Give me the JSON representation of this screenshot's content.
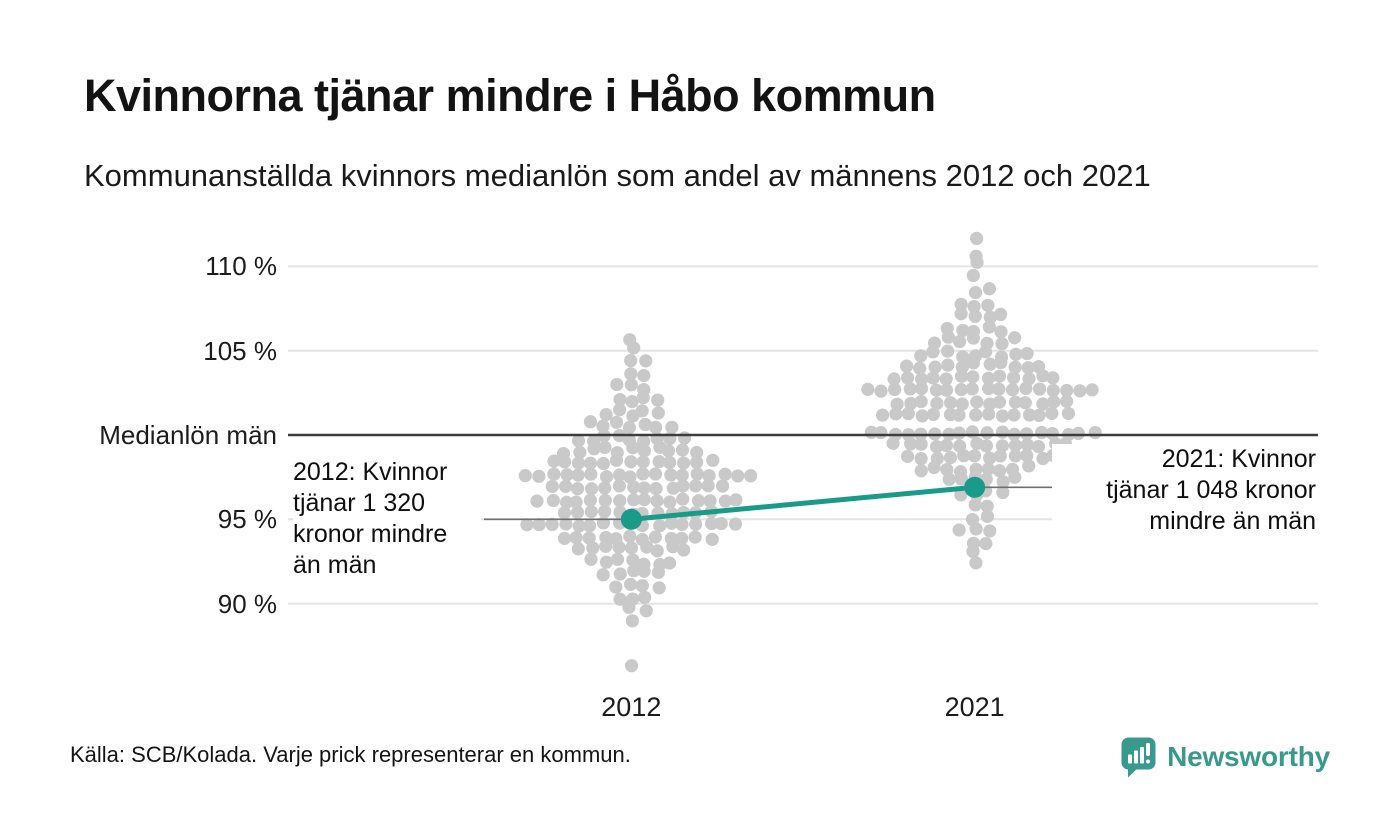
{
  "header": {
    "title": "Kvinnorna tjänar mindre i Håbo kommun",
    "subtitle": "Kommunanställda kvinnors medianlön som andel av männens 2012 och 2021"
  },
  "chart_data": {
    "type": "scatter",
    "variant": "beeswarm",
    "title": "Kvinnorna tjänar mindre i Håbo kommun",
    "subtitle": "Kommunanställda kvinnors medianlön som andel av männens 2012 och 2021",
    "x_categories": [
      "2012",
      "2021"
    ],
    "y_axis": {
      "range": [
        86,
        112.5
      ],
      "unit": "%",
      "grid": true,
      "ticks": [
        {
          "value": 110,
          "label": "110 %"
        },
        {
          "value": 105,
          "label": "105 %"
        },
        {
          "value": 100,
          "label": "Medianlön män"
        },
        {
          "value": 95,
          "label": "95 %"
        },
        {
          "value": 90,
          "label": "90 %"
        }
      ],
      "baseline_value": 100
    },
    "highlight": {
      "label": "Håbo kommun",
      "points": [
        {
          "category": "2012",
          "value": 95.0
        },
        {
          "category": "2021",
          "value": 96.9
        }
      ]
    },
    "annotations": [
      {
        "side": "left",
        "category": "2012",
        "value": 95.0,
        "text": "2012: Kvinnor\ntjänar 1 320\nkronor mindre\nän män"
      },
      {
        "side": "right",
        "category": "2021",
        "value": 96.9,
        "text": "2021: Kvinnor\ntjänar 1 048 kronor\nmindre än män"
      }
    ],
    "distributions": {
      "2012": [
        [
          105.8,
          1
        ],
        [
          105.1,
          1
        ],
        [
          104.3,
          2
        ],
        [
          103.6,
          2
        ],
        [
          102.8,
          3
        ],
        [
          102.1,
          4
        ],
        [
          101.3,
          5
        ],
        [
          100.6,
          7
        ],
        [
          99.8,
          9
        ],
        [
          99.1,
          11
        ],
        [
          98.4,
          13
        ],
        [
          97.6,
          18
        ],
        [
          96.9,
          14
        ],
        [
          96.1,
          16
        ],
        [
          95.4,
          12
        ],
        [
          94.7,
          17
        ],
        [
          93.9,
          12
        ],
        [
          93.2,
          9
        ],
        [
          92.5,
          7
        ],
        [
          91.8,
          5
        ],
        [
          91.1,
          4
        ],
        [
          90.4,
          3
        ],
        [
          89.6,
          2
        ],
        [
          88.9,
          1
        ],
        [
          86.5,
          1
        ]
      ],
      "2021": [
        [
          111.5,
          1
        ],
        [
          110.8,
          1
        ],
        [
          110.1,
          1
        ],
        [
          109.3,
          1
        ],
        [
          108.6,
          2
        ],
        [
          107.8,
          3
        ],
        [
          107.1,
          4
        ],
        [
          106.3,
          5
        ],
        [
          105.6,
          7
        ],
        [
          104.8,
          9
        ],
        [
          104.1,
          11
        ],
        [
          103.4,
          13
        ],
        [
          102.7,
          18
        ],
        [
          101.9,
          14
        ],
        [
          101.2,
          15
        ],
        [
          100.1,
          18
        ],
        [
          99.4,
          14
        ],
        [
          98.7,
          12
        ],
        [
          98.0,
          9
        ],
        [
          97.3,
          6
        ],
        [
          96.6,
          4
        ],
        [
          95.8,
          2
        ],
        [
          95.1,
          2
        ],
        [
          94.4,
          3
        ],
        [
          93.7,
          2
        ],
        [
          93.0,
          1
        ],
        [
          92.3,
          1
        ]
      ]
    },
    "colors": {
      "accent": "#1a9a89",
      "dot": "#c9c9c9",
      "grid": "#e4e4e4",
      "baseline": "#3d3d3d",
      "leader": "#707070"
    }
  },
  "footer": {
    "source": "Källa: SCB/Kolada. Varje prick representerar en kommun.",
    "logo": {
      "text": "Newsworthy",
      "color": "#38998c"
    }
  }
}
